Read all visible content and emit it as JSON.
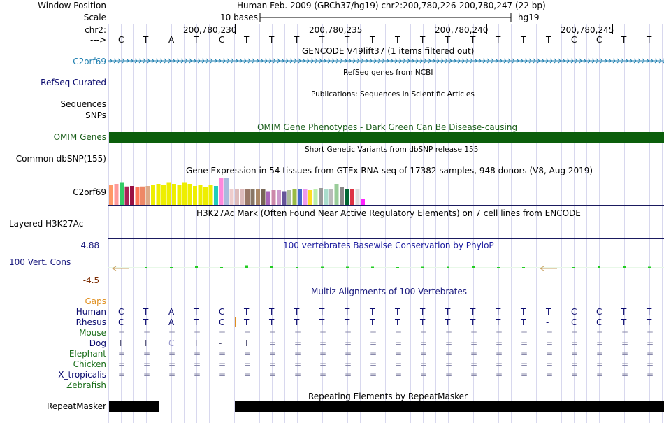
{
  "labels": {
    "window_position": "Window Position",
    "scale": "Scale",
    "chr": "chr2:",
    "arrow": "--->",
    "gencode": "C2orf69",
    "refseq": "RefSeq Curated",
    "sequences": "Sequences",
    "snps": "SNPs",
    "omim": "OMIM Genes",
    "dbsnp": "Common dbSNP(155)",
    "gtex": "C2orf69",
    "h3k27ac": "Layered H3K27Ac",
    "cons_max": "4.88 _",
    "cons_name": "100 Vert. Cons",
    "cons_min": "-4.5 _",
    "gaps": "Gaps",
    "species": [
      "Human",
      "Rhesus",
      "Mouse",
      "Dog",
      "Elephant",
      "Chicken",
      "X_tropicalis",
      "Zebrafish"
    ],
    "repeatmasker": "RepeatMasker"
  },
  "ruler": {
    "position_text": "Human Feb. 2009 (GRCh37/hg19)   chr2:200,780,226-200,780,247 (22 bp)",
    "scale_text": "10 bases",
    "assembly": "hg19",
    "ticks": [
      "200,780,230",
      "200,780,235",
      "200,780,240",
      "200,780,245"
    ]
  },
  "bases": [
    "C",
    "T",
    "A",
    "T",
    "C",
    "T",
    "T",
    "T",
    "T",
    "T",
    "T",
    "T",
    "T",
    "T",
    "T",
    "T",
    "T",
    "T",
    "C",
    "C",
    "T",
    "T"
  ],
  "tracks": {
    "gencode_title": "GENCODE V49lift37 (1 items filtered out)",
    "refseq_title": "RefSeq genes from NCBI",
    "publications_title": "Publications: Sequences in Scientific Articles",
    "omim_title": "OMIM Gene Phenotypes - Dark Green Can Be Disease-causing",
    "dbsnp_title": "Short Genetic Variants from dbSNP release 155",
    "gtex_title": "Gene Expression in 54 tissues from GTEx RNA-seq of 17382 samples, 948 donors (V8, Aug 2019)",
    "h3k27ac_title": "H3K27Ac Mark (Often Found Near Active Regulatory Elements) on 7 cell lines from ENCODE",
    "cons_title": "100 vertebrates Basewise Conservation by PhyloP",
    "multiz_title": "Multiz Alignments of 100 Vertebrates",
    "repeat_title": "Repeating Elements by RepeatMasker"
  },
  "alignment": {
    "Human": [
      "C",
      "T",
      "A",
      "T",
      "C",
      "T",
      "T",
      "T",
      "T",
      "T",
      "T",
      "T",
      "T",
      "T",
      "T",
      "T",
      "T",
      "T",
      "C",
      "C",
      "T",
      "T"
    ],
    "Rhesus": [
      "C",
      "T",
      "A",
      "T",
      "C",
      "T",
      "T",
      "T",
      "T",
      "T",
      "T",
      "T",
      "T",
      "T",
      "T",
      "T",
      "T",
      "-",
      "C",
      "C",
      "T",
      "T"
    ],
    "Mouse": [
      "=",
      "=",
      "=",
      "=",
      "=",
      "=",
      "=",
      "=",
      "=",
      "=",
      "=",
      "=",
      "=",
      "=",
      "=",
      "=",
      "=",
      "=",
      "=",
      "=",
      "=",
      "="
    ],
    "Dog": [
      "T",
      "T",
      "C",
      "T",
      "-",
      "T",
      "=",
      "=",
      "=",
      "=",
      "=",
      "=",
      "=",
      "=",
      "=",
      "=",
      "=",
      "=",
      "=",
      "=",
      "=",
      "="
    ],
    "Elephant": [
      "=",
      "=",
      "=",
      "=",
      "=",
      "=",
      "=",
      "=",
      "=",
      "=",
      "=",
      "=",
      "=",
      "=",
      "=",
      "=",
      "=",
      "=",
      "=",
      "=",
      "=",
      "="
    ],
    "Chicken": [
      "=",
      "=",
      "=",
      "=",
      "=",
      "=",
      "=",
      "=",
      "=",
      "=",
      "=",
      "=",
      "=",
      "=",
      "=",
      "=",
      "=",
      "=",
      "=",
      "=",
      "=",
      "="
    ],
    "X_tropicalis": [
      "=",
      "=",
      "=",
      "=",
      "=",
      "=",
      "=",
      "=",
      "=",
      "=",
      "=",
      "=",
      "=",
      "=",
      "=",
      "=",
      "=",
      "=",
      "=",
      "=",
      "=",
      "="
    ],
    "Zebrafish": [
      "",
      "",
      "",
      "",
      "",
      "",
      "",
      "",
      "",
      "",
      "",
      "",
      "",
      "",
      "",
      "",
      "",
      "",
      "",
      "",
      "",
      ""
    ]
  },
  "gtex_colors": [
    "#ff9966",
    "#ff9999",
    "#33cc66",
    "#aa2255",
    "#991144",
    "#ff7755",
    "#ee8866",
    "#ddaa88",
    "#eeee00",
    "#eeee00",
    "#eeee00",
    "#eeee00",
    "#eeee00",
    "#eeee00",
    "#eeee00",
    "#eeee00",
    "#eeee00",
    "#eeee00",
    "#eeee00",
    "#eeee00",
    "#22ccbb",
    "#ff88dd",
    "#aabbdd",
    "#eecccc",
    "#ddbbbb",
    "#ddbbbb",
    "#997766",
    "#887766",
    "#aa8866",
    "#776655",
    "#aa66bb",
    "#cc88aa",
    "#cc99cc",
    "#665599",
    "#aabb99",
    "#99bb44",
    "#4466cc",
    "#ee99ee",
    "#ffdd22",
    "#bbeeaa",
    "#999999",
    "#aaddcc",
    "#bbbbbb",
    "#99cc99",
    "#888888",
    "#006633",
    "#dd3344",
    "#dddddd",
    "#ff22ff"
  ],
  "gtex_levels": [
    0.38,
    0.4,
    0.42,
    0.35,
    0.36,
    0.34,
    0.35,
    0.36,
    0.38,
    0.4,
    0.38,
    0.42,
    0.4,
    0.38,
    0.42,
    0.4,
    0.36,
    0.38,
    0.34,
    0.38,
    0.36,
    0.52,
    0.52,
    0.3,
    0.3,
    0.3,
    0.3,
    0.3,
    0.3,
    0.3,
    0.26,
    0.28,
    0.28,
    0.26,
    0.28,
    0.3,
    0.3,
    0.3,
    0.28,
    0.3,
    0.32,
    0.3,
    0.3,
    0.4,
    0.34,
    0.3,
    0.3,
    0.3,
    0.12
  ],
  "conservation": [
    -0.9,
    0.2,
    0,
    0.6,
    0,
    0.7,
    0.6,
    0.2,
    0.3,
    0.3,
    0.3,
    0.2,
    0.3,
    0.3,
    0.4,
    0,
    0,
    -0.9,
    0,
    0.4,
    0.4,
    0.3
  ]
}
